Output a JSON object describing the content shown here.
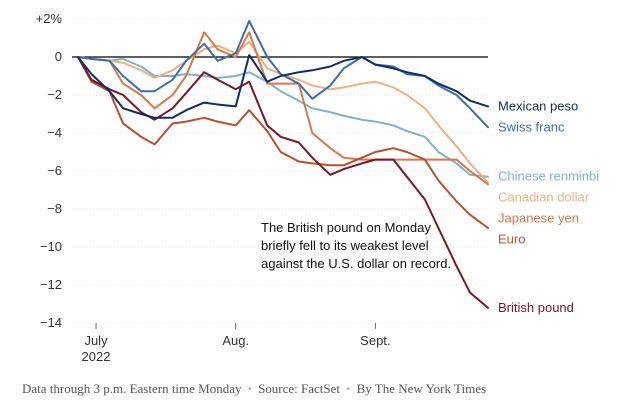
{
  "chart_data": {
    "type": "line",
    "ylim": [
      -14,
      2
    ],
    "yticks": [
      {
        "value": 2,
        "label": "+2%"
      },
      {
        "value": 0,
        "label": "0"
      },
      {
        "value": -2,
        "label": "−2"
      },
      {
        "value": -4,
        "label": "−4"
      },
      {
        "value": -6,
        "label": "−6"
      },
      {
        "value": -8,
        "label": "−8"
      },
      {
        "value": -10,
        "label": "−10"
      },
      {
        "value": -12,
        "label": "−12"
      },
      {
        "value": -14,
        "label": "−14"
      }
    ],
    "x": [
      "2022-06-27",
      "2022-06-30",
      "2022-07-04",
      "2022-07-07",
      "2022-07-11",
      "2022-07-14",
      "2022-07-18",
      "2022-07-21",
      "2022-07-25",
      "2022-07-28",
      "2022-08-01",
      "2022-08-04",
      "2022-08-08",
      "2022-08-11",
      "2022-08-15",
      "2022-08-18",
      "2022-08-22",
      "2022-08-25",
      "2022-08-29",
      "2022-09-01",
      "2022-09-05",
      "2022-09-08",
      "2022-09-12",
      "2022-09-15",
      "2022-09-19",
      "2022-09-22",
      "2022-09-26"
    ],
    "xlim": [
      "2022-06-27",
      "2022-09-26"
    ],
    "xticks": [
      {
        "date": "2022-07-01",
        "label": "July",
        "sublabel": "2022"
      },
      {
        "date": "2022-08-01",
        "label": "Aug.",
        "sublabel": ""
      },
      {
        "date": "2022-09-01",
        "label": "Sept.",
        "sublabel": ""
      }
    ],
    "annotation": {
      "lines": [
        "The British pound on Monday",
        "briefly fell to its weakest level",
        "against the U.S. dollar on record."
      ]
    },
    "series": [
      {
        "name": "Chinese renminbi",
        "color": "#7fb3c8",
        "values": [
          0,
          -0.1,
          -0.2,
          -0.1,
          -0.5,
          -1.0,
          -1.0,
          -0.9,
          -1.0,
          -1.1,
          -1.0,
          -0.8,
          -1.3,
          -1.8,
          -2.3,
          -2.7,
          -2.9,
          -3.1,
          -3.3,
          -3.4,
          -3.6,
          -3.9,
          -4.2,
          -5.0,
          -5.6,
          -6.2,
          -6.3
        ]
      },
      {
        "name": "Canadian dollar",
        "color": "#f0b080",
        "values": [
          0,
          -0.1,
          -0.2,
          -0.3,
          -0.7,
          -1.1,
          -0.7,
          -0.2,
          0.4,
          0.6,
          0.2,
          0.8,
          -0.6,
          -0.9,
          -1.2,
          -1.5,
          -1.7,
          -1.6,
          -1.4,
          -1.3,
          -1.6,
          -2.0,
          -2.7,
          -3.6,
          -4.7,
          -5.6,
          -6.6
        ]
      },
      {
        "name": "Japanese yen",
        "color": "#d8784a",
        "values": [
          0,
          -0.1,
          -0.2,
          -1.4,
          -2.0,
          -2.7,
          -2.0,
          -1.0,
          1.3,
          0.4,
          0.0,
          1.3,
          -1.4,
          -1.4,
          -1.4,
          -4.0,
          -4.8,
          -5.3,
          -5.4,
          -5.4,
          -5.4,
          -5.4,
          -5.4,
          -5.4,
          -5.4,
          -6.0,
          -6.7
        ]
      },
      {
        "name": "Euro",
        "color": "#b85030",
        "values": [
          0,
          -1.3,
          -1.8,
          -3.5,
          -4.2,
          -4.6,
          -3.5,
          -3.4,
          -3.2,
          -3.4,
          -3.6,
          -2.8,
          -3.9,
          -5.0,
          -5.5,
          -5.6,
          -5.7,
          -5.7,
          -5.3,
          -5.0,
          -4.8,
          -5.0,
          -5.4,
          -6.5,
          -7.6,
          -8.3,
          -9.0
        ]
      },
      {
        "name": "British pound",
        "color": "#7a1722",
        "values": [
          0,
          -1.2,
          -1.7,
          -2.0,
          -2.9,
          -3.3,
          -2.7,
          -1.9,
          -0.8,
          -1.2,
          -1.7,
          -1.3,
          -3.6,
          -4.2,
          -4.5,
          -5.3,
          -6.2,
          -5.9,
          -5.6,
          -5.4,
          -5.4,
          -6.3,
          -7.5,
          -9.0,
          -11.0,
          -12.4,
          -13.2
        ]
      },
      {
        "name": "Swiss franc",
        "color": "#3d6eac",
        "values": [
          0,
          -0.1,
          -0.2,
          -1.0,
          -1.8,
          -1.8,
          -1.2,
          -0.2,
          0.7,
          -0.2,
          0.2,
          1.9,
          0.0,
          -0.9,
          -1.4,
          -2.2,
          -1.5,
          -0.6,
          0.0,
          -0.4,
          -0.5,
          -0.9,
          -1.0,
          -1.5,
          -2.0,
          -2.7,
          -3.7
        ]
      },
      {
        "name": "Mexican peso",
        "color": "#0d2e6b",
        "values": [
          0,
          -0.9,
          -1.8,
          -2.7,
          -3.0,
          -3.2,
          -3.2,
          -2.8,
          -2.4,
          -2.5,
          -2.6,
          0.1,
          -1.3,
          -1.0,
          -0.8,
          -0.7,
          -0.5,
          -0.2,
          0.0,
          -0.4,
          -0.6,
          -0.8,
          -1.0,
          -1.4,
          -1.8,
          -2.3,
          -2.6
        ]
      }
    ]
  },
  "footer": {
    "data_note": "Data through 3 p.m. Eastern time Monday",
    "source": "Source: FactSet",
    "credit": "By The New York Times"
  }
}
